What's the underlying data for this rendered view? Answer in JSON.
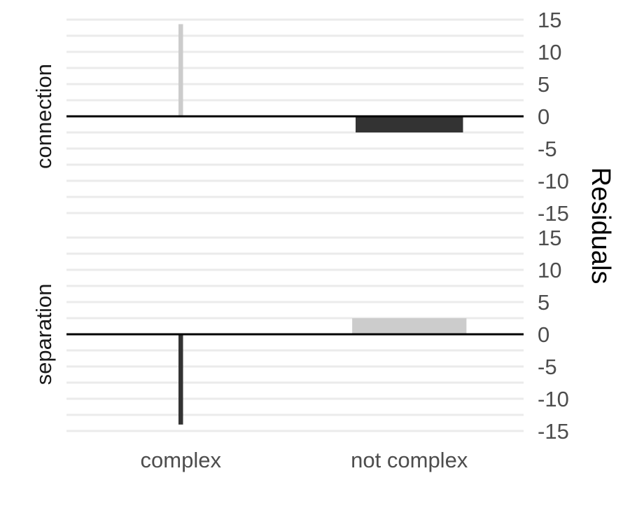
{
  "chart_data": {
    "type": "bar",
    "ylabel": "Residuals",
    "xlabel": "",
    "categories": [
      "complex",
      "not complex"
    ],
    "ylim": [
      -15,
      15
    ],
    "yticks": [
      15,
      10,
      5,
      0,
      -5,
      -10,
      -15
    ],
    "ytick_labels": [
      "15",
      "10",
      "5",
      "0",
      "-5",
      "-10",
      "-15"
    ],
    "y_axis_position": "right",
    "grid": true,
    "facets": [
      {
        "label": "connection",
        "values": [
          14.3,
          -2.5
        ],
        "colors": [
          "#cccccc",
          "#333333"
        ],
        "widths": [
          0.02,
          0.47
        ]
      },
      {
        "label": "separation",
        "values": [
          -14,
          2.5
        ],
        "colors": [
          "#333333",
          "#cccccc"
        ],
        "widths": [
          0.02,
          0.5
        ]
      }
    ]
  }
}
